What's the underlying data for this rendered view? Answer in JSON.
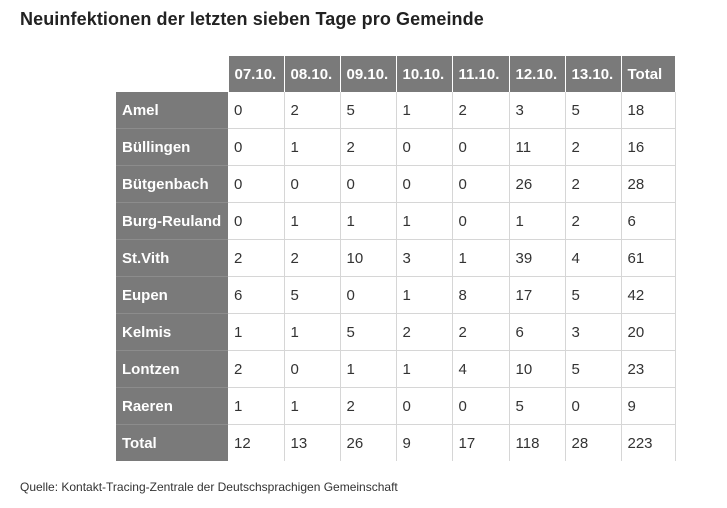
{
  "title": "Neuinfektionen der letzten sieben Tage pro Gemeinde",
  "table": {
    "headers": [
      "07.10.",
      "08.10.",
      "09.10.",
      "10.10.",
      "11.10.",
      "12.10.",
      "13.10.",
      "Total"
    ],
    "rows": [
      {
        "name": "Amel",
        "values": [
          "0",
          "2",
          "5",
          "1",
          "2",
          "3",
          "5",
          "18"
        ]
      },
      {
        "name": "Büllingen",
        "values": [
          "0",
          "1",
          "2",
          "0",
          "0",
          "11",
          "2",
          "16"
        ]
      },
      {
        "name": "Bütgenbach",
        "values": [
          "0",
          "0",
          "0",
          "0",
          "0",
          "26",
          "2",
          "28"
        ]
      },
      {
        "name": "Burg-Reuland",
        "values": [
          "0",
          "1",
          "1",
          "1",
          "0",
          "1",
          "2",
          "6"
        ]
      },
      {
        "name": "St.Vith",
        "values": [
          "2",
          "2",
          "10",
          "3",
          "1",
          "39",
          "4",
          "61"
        ]
      },
      {
        "name": "Eupen",
        "values": [
          "6",
          "5",
          "0",
          "1",
          "8",
          "17",
          "5",
          "42"
        ]
      },
      {
        "name": "Kelmis",
        "values": [
          "1",
          "1",
          "5",
          "2",
          "2",
          "6",
          "3",
          "20"
        ]
      },
      {
        "name": "Lontzen",
        "values": [
          "2",
          "0",
          "1",
          "1",
          "4",
          "10",
          "5",
          "23"
        ]
      },
      {
        "name": "Raeren",
        "values": [
          "1",
          "1",
          "2",
          "0",
          "0",
          "5",
          "0",
          "9"
        ]
      },
      {
        "name": "Total",
        "values": [
          "12",
          "13",
          "26",
          "9",
          "17",
          "118",
          "28",
          "223"
        ]
      }
    ]
  },
  "source": "Quelle: Kontakt-Tracing-Zentrale der Deutschsprachigen Gemeinschaft"
}
